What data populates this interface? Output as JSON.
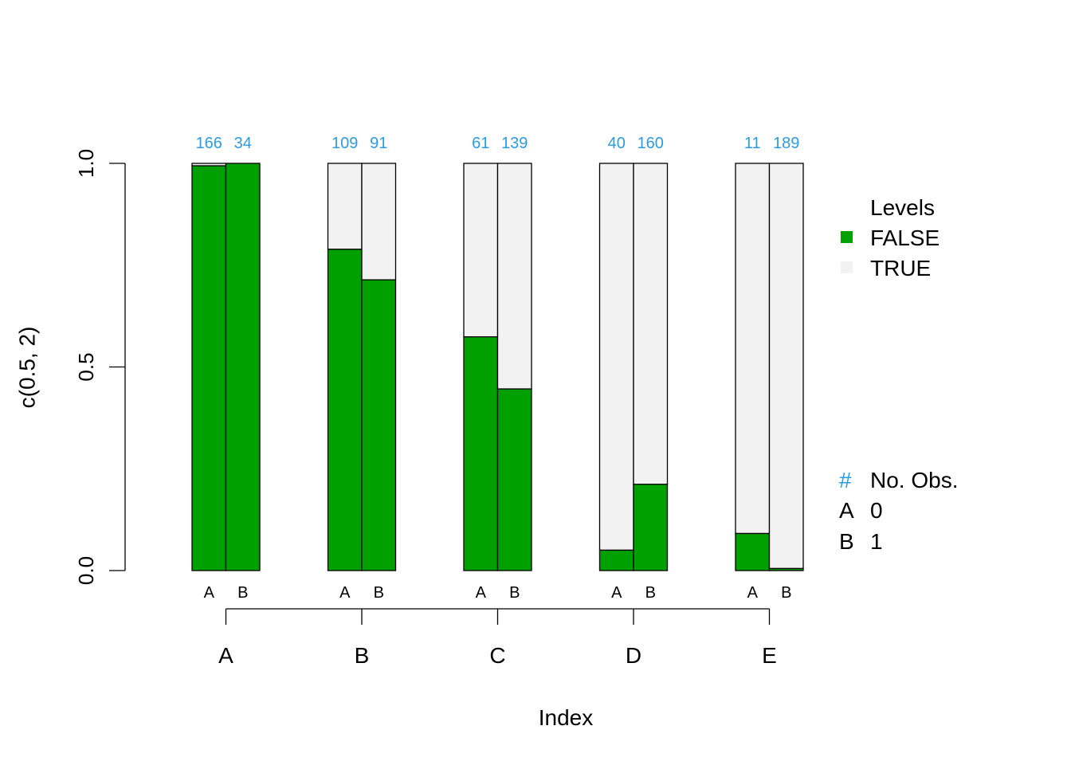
{
  "chart_data": {
    "type": "bar",
    "stacked": true,
    "xlabel": "Index",
    "ylabel": "c(0.5, 2)",
    "ylim": [
      0,
      1
    ],
    "yticks": [
      "0.0",
      "0.5",
      "1.0"
    ],
    "categories": [
      "A",
      "B",
      "C",
      "D",
      "E"
    ],
    "subcategories": [
      "A",
      "B"
    ],
    "levels": [
      {
        "name": "FALSE",
        "color": "#00A000"
      },
      {
        "name": "TRUE",
        "color": "#F2F2F2"
      }
    ],
    "false_fraction": [
      [
        0.994,
        1.0
      ],
      [
        0.789,
        0.714
      ],
      [
        0.574,
        0.446
      ],
      [
        0.05,
        0.212
      ],
      [
        0.091,
        0.005
      ]
    ],
    "counts": [
      [
        "166",
        "34"
      ],
      [
        "109",
        "91"
      ],
      [
        "61",
        "139"
      ],
      [
        "40",
        "160"
      ],
      [
        "11",
        "189"
      ]
    ],
    "count_color": "#2B9CE0"
  },
  "legend": {
    "levels_title": "Levels",
    "levels": [
      {
        "label": "FALSE",
        "color": "#00A000"
      },
      {
        "label": "TRUE",
        "color": "#F2F2F2"
      }
    ],
    "obs_symbol": "#",
    "obs_title": "No. Obs.",
    "obs": [
      {
        "key": "A",
        "value": "0"
      },
      {
        "key": "B",
        "value": "1"
      }
    ]
  }
}
